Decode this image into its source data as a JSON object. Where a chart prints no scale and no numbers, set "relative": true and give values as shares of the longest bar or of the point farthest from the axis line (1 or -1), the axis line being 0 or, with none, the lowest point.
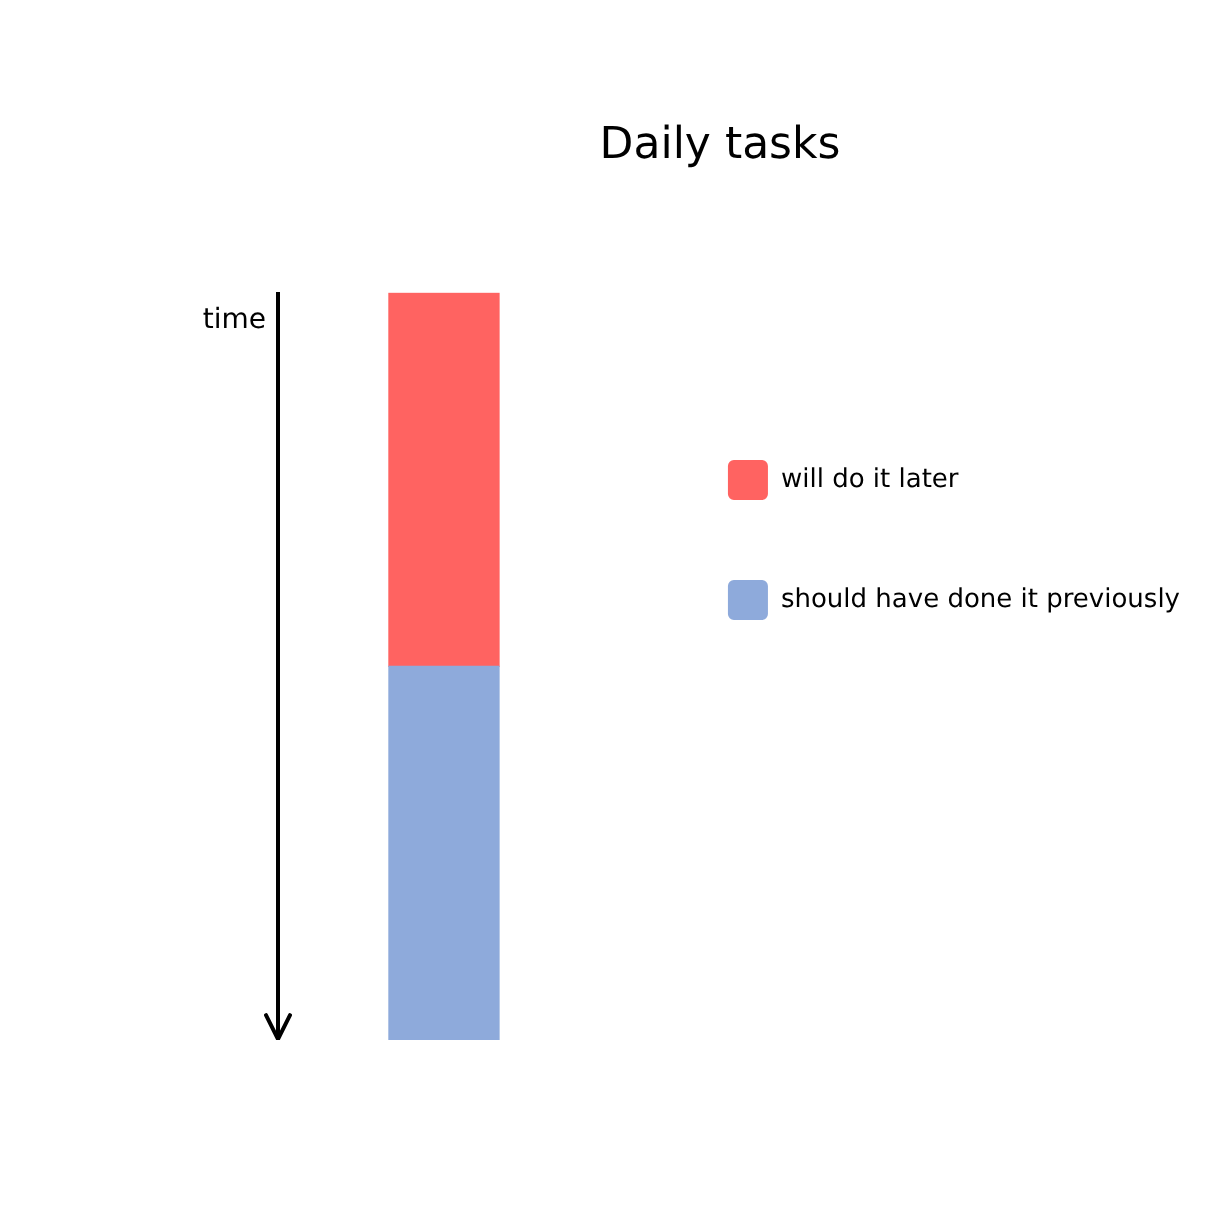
{
  "chart_data": {
    "type": "bar",
    "title": "Daily tasks",
    "ylabel": "time",
    "categories": [
      null
    ],
    "stacked": true,
    "relative": true,
    "legend": "right",
    "series": [
      {
        "name": "should have done it previously",
        "color": "#8eaadb",
        "values": [
          0.5
        ]
      },
      {
        "name": "will do it later",
        "color": "#ff6361",
        "values": [
          0.5
        ]
      }
    ]
  }
}
